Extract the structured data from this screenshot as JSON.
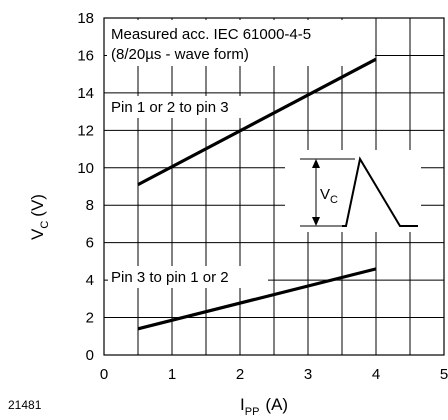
{
  "figure_id": "21481",
  "chart_data": {
    "type": "line",
    "xlabel": {
      "main": "I",
      "sub": "PP",
      "unit": "(A)"
    },
    "ylabel": {
      "main": "V",
      "sub": "C",
      "unit": "(V)"
    },
    "xlim": [
      0,
      5
    ],
    "ylim": [
      0,
      18
    ],
    "x_ticks": [
      0,
      1,
      2,
      3,
      4,
      5
    ],
    "y_ticks": [
      0,
      2,
      4,
      6,
      8,
      10,
      12,
      14,
      16,
      18
    ],
    "x_minor_step": 0.5,
    "grid": true,
    "series": [
      {
        "name": "Pin 1 or 2 to pin 3",
        "x": [
          0.5,
          4.0
        ],
        "y": [
          9.1,
          15.8
        ]
      },
      {
        "name": "Pin 3 to pin 1 or 2",
        "x": [
          0.5,
          4.0
        ],
        "y": [
          1.4,
          4.6
        ]
      }
    ],
    "annotations": [
      {
        "text": "Measured acc. IEC 61000-4-5"
      },
      {
        "text": "(8/20µs - wave form)"
      }
    ],
    "inset": {
      "label_main": "V",
      "label_sub": "C"
    }
  }
}
